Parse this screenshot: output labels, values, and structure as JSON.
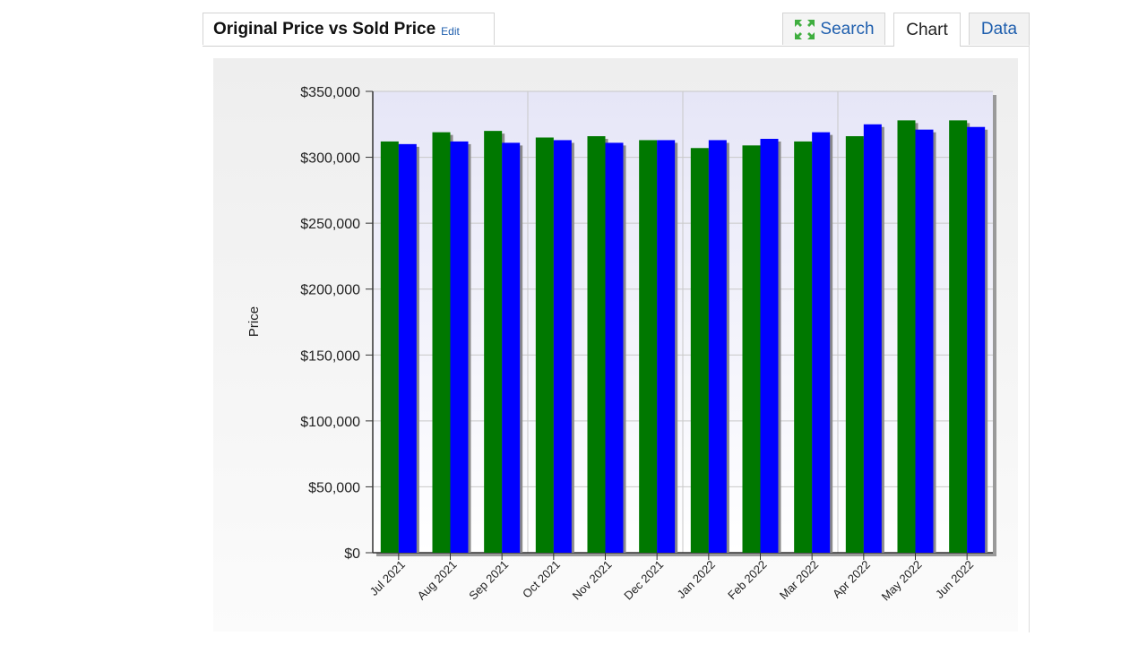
{
  "header": {
    "title": "Original Price vs Sold Price",
    "edit_label": "Edit",
    "tabs": [
      {
        "label": "Search",
        "icon": "expand-arrows-icon",
        "active": false
      },
      {
        "label": "Chart",
        "active": true
      },
      {
        "label": "Data",
        "active": false
      }
    ]
  },
  "colors": {
    "original_price": "#007800",
    "sold_price": "#0000ff",
    "link": "#1f5fae"
  },
  "chart_data": {
    "type": "bar",
    "title": "",
    "xlabel": "",
    "ylabel": "Price",
    "ylim": [
      0,
      350000
    ],
    "yticks": [
      0,
      50000,
      100000,
      150000,
      200000,
      250000,
      300000,
      350000
    ],
    "ytick_labels": [
      "$0",
      "$50,000",
      "$100,000",
      "$150,000",
      "$200,000",
      "$250,000",
      "$300,000",
      "$350,000"
    ],
    "grid": true,
    "categories": [
      "Jul 2021",
      "Aug 2021",
      "Sep 2021",
      "Oct 2021",
      "Nov 2021",
      "Dec 2021",
      "Jan 2022",
      "Feb 2022",
      "Mar 2022",
      "Apr 2022",
      "May 2022",
      "Jun 2022"
    ],
    "series": [
      {
        "color": "#007800",
        "values": [
          312000,
          319000,
          320000,
          315000,
          316000,
          313000,
          307000,
          309000,
          312000,
          316000,
          328000,
          328000
        ]
      },
      {
        "color": "#0000ff",
        "values": [
          310000,
          312000,
          311000,
          313000,
          311000,
          313000,
          313000,
          314000,
          319000,
          325000,
          321000,
          323000
        ]
      }
    ]
  }
}
